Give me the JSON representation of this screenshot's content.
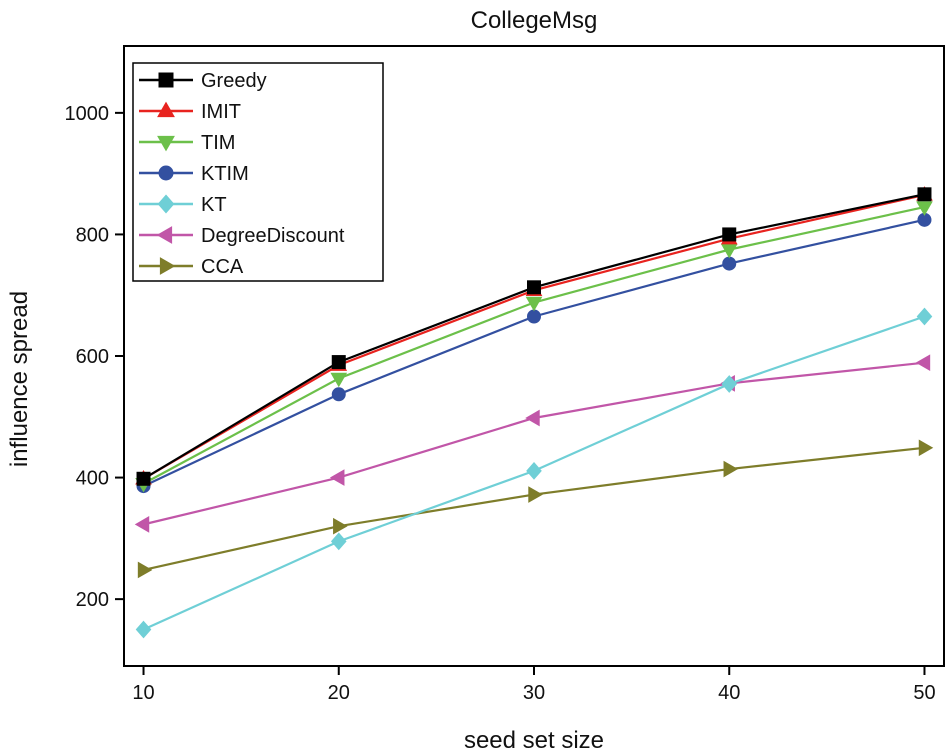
{
  "chart_data": {
    "type": "line",
    "title": "CollegeMsg",
    "xlabel": "seed set size",
    "ylabel": "influence spread",
    "x": [
      10,
      20,
      30,
      40,
      50
    ],
    "xlim": [
      9,
      51
    ],
    "ylim": [
      90,
      1110
    ],
    "xticks": [
      "10",
      "20",
      "30",
      "40",
      "50"
    ],
    "ytick_values": [
      200,
      400,
      600,
      800,
      1000
    ],
    "yticks": [
      "200",
      "400",
      "600",
      "800",
      "1000"
    ],
    "grid": false,
    "legend_position": "top-left",
    "series": [
      {
        "name": "Greedy",
        "marker": "square",
        "color": "#000000",
        "values": [
          398,
          590,
          713,
          800,
          866
        ]
      },
      {
        "name": "IMIT",
        "marker": "triangle-up",
        "color": "#e8231f",
        "values": [
          398,
          585,
          708,
          793,
          865
        ]
      },
      {
        "name": "TIM",
        "marker": "triangle-down",
        "color": "#6cc04a",
        "values": [
          390,
          563,
          688,
          775,
          845
        ]
      },
      {
        "name": "KTIM",
        "marker": "circle",
        "color": "#3350a0",
        "values": [
          386,
          537,
          665,
          752,
          824
        ]
      },
      {
        "name": "KT",
        "marker": "diamond",
        "color": "#6fcfd6",
        "values": [
          150,
          295,
          411,
          554,
          665
        ]
      },
      {
        "name": "DegreeDiscount",
        "marker": "triangle-left",
        "color": "#c156a8",
        "values": [
          323,
          400,
          498,
          555,
          589
        ]
      },
      {
        "name": "CCA",
        "marker": "triangle-right",
        "color": "#7e7d2a",
        "values": [
          248,
          320,
          372,
          414,
          449
        ]
      }
    ]
  }
}
